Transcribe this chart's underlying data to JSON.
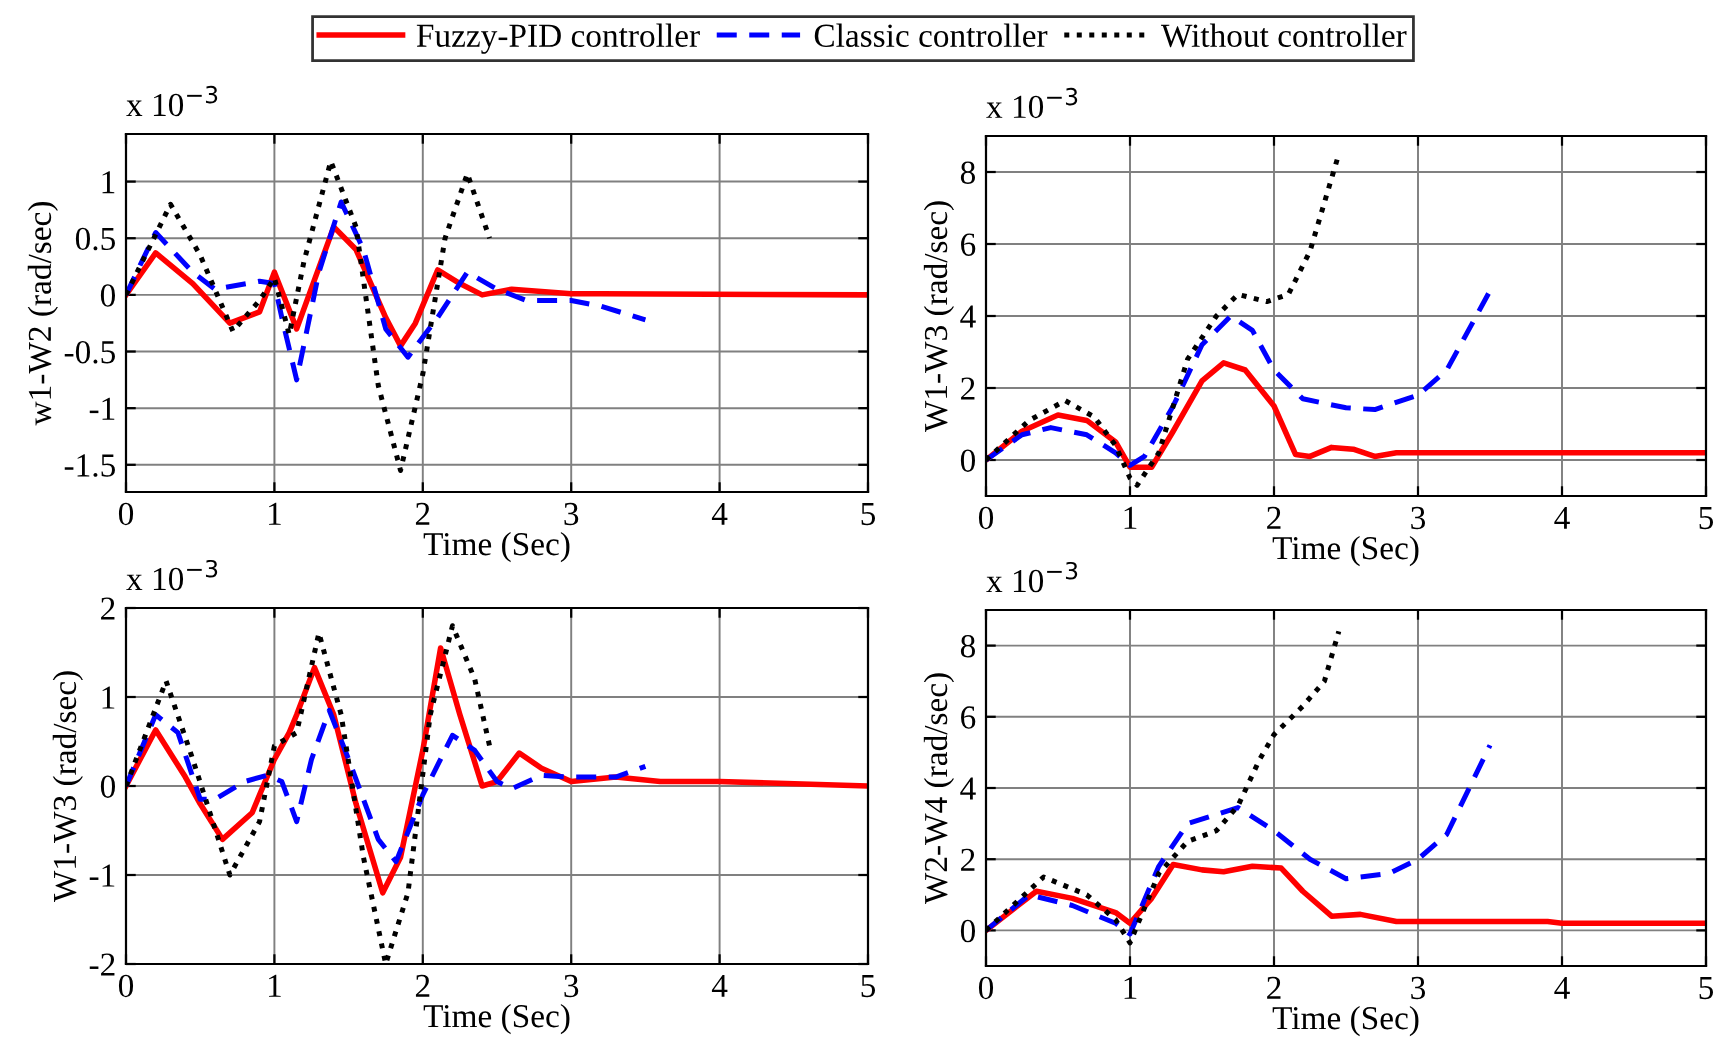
{
  "chart_data": [
    {
      "type": "line",
      "xlabel": "Time (Sec)",
      "ylabel": "w1-W2 (rad/sec)",
      "annotations": [
        "x 10$^{−3}$"
      ],
      "xlim": [
        0,
        5
      ],
      "xticks": [
        0,
        1,
        2,
        3,
        4,
        5
      ],
      "ylim": [
        -1.74,
        1.42
      ],
      "yticks": [
        -1.5,
        -1,
        -0.5,
        0,
        0.5,
        1
      ],
      "grid": true,
      "legend": "top",
      "series": [
        {
          "name": "Fuzzy-PID controller",
          "color": "#ff0000",
          "line_style": "solid",
          "x": [
            0,
            0.2,
            0.45,
            0.7,
            0.9,
            1.0,
            1.15,
            1.4,
            1.55,
            1.75,
            1.85,
            1.95,
            2.1,
            2.25,
            2.4,
            2.6,
            3,
            3.2,
            5
          ],
          "values": [
            0,
            0.37,
            0.1,
            -0.25,
            -0.15,
            0.2,
            -0.3,
            0.6,
            0.4,
            -0.2,
            -0.45,
            -0.25,
            0.22,
            0.1,
            0.0,
            0.05,
            0.01,
            0.01,
            0
          ]
        },
        {
          "name": "Classic controller",
          "color": "#0000ff",
          "line_style": "dashed",
          "x": [
            0,
            0.2,
            0.45,
            0.6,
            0.9,
            1.0,
            1.05,
            1.15,
            1.3,
            1.45,
            1.6,
            1.75,
            1.9,
            2.1,
            2.3,
            2.5,
            2.7,
            3.0,
            3.2,
            3.5
          ],
          "values": [
            0,
            0.55,
            0.2,
            0.05,
            0.12,
            0.1,
            -0.2,
            -0.75,
            0.2,
            0.82,
            0.4,
            -0.3,
            -0.55,
            -0.2,
            0.2,
            0.05,
            -0.05,
            -0.05,
            -0.1,
            -0.22
          ]
        },
        {
          "name": "Without controller",
          "color": "#000000",
          "line_style": "dotted",
          "x": [
            0,
            0.3,
            0.5,
            0.72,
            0.9,
            1.0,
            1.1,
            1.2,
            1.38,
            1.55,
            1.7,
            1.85,
            2.0,
            2.15,
            2.3,
            2.45
          ],
          "values": [
            0,
            0.8,
            0.35,
            -0.32,
            -0.05,
            0.15,
            -0.35,
            0.3,
            1.18,
            0.6,
            -0.8,
            -1.55,
            -0.7,
            0.5,
            1.07,
            0.5
          ]
        }
      ]
    },
    {
      "type": "line",
      "xlabel": "Time (Sec)",
      "ylabel": "W1-W3 (rad/sec)",
      "annotations": [
        "x 10$^{−3}$"
      ],
      "xlim": [
        0,
        5
      ],
      "xticks": [
        0,
        1,
        2,
        3,
        4,
        5
      ],
      "ylim": [
        -1,
        9
      ],
      "yticks": [
        0,
        2,
        4,
        6,
        8
      ],
      "grid": true,
      "series": [
        {
          "color": "#ff0000",
          "line_style": "solid",
          "x": [
            0,
            0.25,
            0.5,
            0.7,
            0.9,
            1.0,
            1.15,
            1.3,
            1.5,
            1.65,
            1.8,
            2.0,
            2.15,
            2.25,
            2.4,
            2.55,
            2.7,
            2.85,
            3,
            5
          ],
          "values": [
            0,
            0.8,
            1.25,
            1.1,
            0.5,
            -0.2,
            -0.2,
            0.8,
            2.2,
            2.7,
            2.5,
            1.5,
            0.15,
            0.1,
            0.35,
            0.3,
            0.1,
            0.2,
            0.2,
            0.2
          ]
        },
        {
          "color": "#0000ff",
          "line_style": "dashed",
          "x": [
            0,
            0.25,
            0.45,
            0.7,
            0.9,
            1.0,
            1.1,
            1.3,
            1.5,
            1.7,
            1.85,
            2.0,
            2.2,
            2.5,
            2.7,
            3.0,
            3.2,
            3.5
          ],
          "values": [
            0,
            0.7,
            0.9,
            0.7,
            0.2,
            -0.15,
            0.1,
            1.5,
            3.2,
            4.0,
            3.6,
            2.5,
            1.7,
            1.45,
            1.4,
            1.8,
            2.5,
            4.7
          ]
        },
        {
          "color": "#000000",
          "line_style": "dotted",
          "x": [
            0,
            0.3,
            0.55,
            0.75,
            0.9,
            1.0,
            1.05,
            1.2,
            1.4,
            1.6,
            1.75,
            1.95,
            2.1,
            2.25,
            2.45
          ],
          "values": [
            0,
            1.1,
            1.65,
            1.2,
            0.4,
            -0.5,
            -0.7,
            0.2,
            2.8,
            4.0,
            4.6,
            4.4,
            4.6,
            5.8,
            8.5
          ]
        }
      ]
    },
    {
      "type": "line",
      "xlabel": "Time (Sec)",
      "ylabel": "W1-W3 (rad/sec)",
      "annotations": [
        "x 10$^{−3}$"
      ],
      "xlim": [
        0,
        5
      ],
      "xticks": [
        0,
        1,
        2,
        3,
        4,
        5
      ],
      "ylim": [
        -2,
        2
      ],
      "yticks": [
        -2,
        -1,
        0,
        1,
        2
      ],
      "grid": true,
      "series": [
        {
          "color": "#ff0000",
          "line_style": "solid",
          "x": [
            0,
            0.2,
            0.4,
            0.5,
            0.65,
            0.85,
            1.0,
            1.1,
            1.15,
            1.27,
            1.4,
            1.55,
            1.73,
            1.85,
            2.0,
            2.12,
            2.25,
            2.4,
            2.5,
            2.65,
            2.8,
            3.0,
            3.3,
            3.6,
            4,
            5
          ],
          "values": [
            0,
            0.63,
            0.1,
            -0.2,
            -0.6,
            -0.3,
            0.3,
            0.6,
            0.8,
            1.33,
            0.8,
            -0.2,
            -1.2,
            -0.8,
            0.4,
            1.55,
            0.8,
            0.0,
            0.05,
            0.37,
            0.2,
            0.05,
            0.1,
            0.05,
            0.05,
            0.0
          ]
        },
        {
          "color": "#0000ff",
          "line_style": "dashed",
          "x": [
            0,
            0.2,
            0.35,
            0.5,
            0.6,
            0.8,
            0.95,
            1.05,
            1.15,
            1.25,
            1.37,
            1.5,
            1.7,
            1.82,
            2.0,
            2.2,
            2.35,
            2.5,
            2.6,
            2.8,
            3.0,
            3.3,
            3.5
          ],
          "values": [
            0,
            0.8,
            0.6,
            -0.15,
            -0.15,
            0.05,
            0.12,
            0.05,
            -0.4,
            0.3,
            0.85,
            0.3,
            -0.6,
            -0.85,
            -0.1,
            0.57,
            0.4,
            0.05,
            -0.03,
            0.12,
            0.1,
            0.1,
            0.22
          ]
        },
        {
          "color": "#000000",
          "line_style": "dotted",
          "x": [
            0,
            0.27,
            0.45,
            0.7,
            0.9,
            1.0,
            1.15,
            1.3,
            1.45,
            1.6,
            1.75,
            1.9,
            2.05,
            2.2,
            2.35,
            2.45
          ],
          "values": [
            0,
            1.18,
            0.3,
            -1.0,
            -0.4,
            0.45,
            0.6,
            1.72,
            0.8,
            -0.8,
            -2.0,
            -1.2,
            0.8,
            1.8,
            1.2,
            0.45
          ]
        }
      ]
    },
    {
      "type": "line",
      "xlabel": "Time (Sec)",
      "ylabel": "W2-W4 (rad/sec)",
      "annotations": [
        "x 10$^{−3}$"
      ],
      "xlim": [
        0,
        5
      ],
      "xticks": [
        0,
        1,
        2,
        3,
        4,
        5
      ],
      "ylim": [
        -1,
        9
      ],
      "yticks": [
        0,
        2,
        4,
        6,
        8
      ],
      "grid": true,
      "series": [
        {
          "color": "#ff0000",
          "line_style": "solid",
          "x": [
            0,
            0.35,
            0.6,
            0.9,
            1.0,
            1.15,
            1.3,
            1.5,
            1.65,
            1.85,
            2.05,
            2.2,
            2.4,
            2.6,
            2.85,
            3,
            3.9,
            4,
            5
          ],
          "values": [
            0,
            1.1,
            0.9,
            0.5,
            0.2,
            0.9,
            1.85,
            1.7,
            1.65,
            1.8,
            1.75,
            1.1,
            0.4,
            0.45,
            0.25,
            0.25,
            0.25,
            0.2,
            0.2
          ]
        },
        {
          "color": "#0000ff",
          "line_style": "dashed",
          "x": [
            0,
            0.3,
            0.6,
            0.9,
            1.0,
            1.2,
            1.4,
            1.75,
            2.0,
            2.25,
            2.5,
            2.8,
            3.0,
            3.2,
            3.5
          ],
          "values": [
            0,
            1.0,
            0.7,
            0.2,
            -0.1,
            1.8,
            3.0,
            3.45,
            2.8,
            2.0,
            1.45,
            1.6,
            2.0,
            2.7,
            5.2
          ]
        },
        {
          "color": "#000000",
          "line_style": "dotted",
          "x": [
            0,
            0.4,
            0.7,
            0.9,
            1.0,
            1.2,
            1.4,
            1.6,
            1.75,
            1.9,
            2.0,
            2.2,
            2.35,
            2.45
          ],
          "values": [
            0,
            1.5,
            1.0,
            0.3,
            -0.35,
            1.6,
            2.5,
            2.8,
            3.5,
            4.8,
            5.5,
            6.3,
            7.0,
            8.4
          ]
        }
      ]
    }
  ]
}
